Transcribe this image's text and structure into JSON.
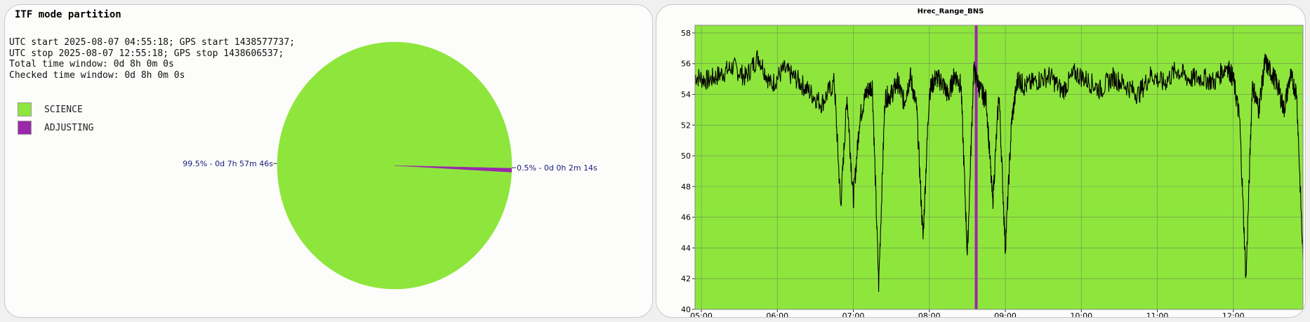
{
  "pie_panel": {
    "title": "ITF mode partition",
    "info_lines": [
      "UTC start 2025-08-07 04:55:18; GPS start 1438577737;",
      "UTC stop 2025-08-07 12:55:18; GPS stop 1438606537;",
      "Total time window: 0d 8h 0m 0s",
      "Checked time window: 0d 8h 0m 0s"
    ],
    "legend": [
      {
        "label": "SCIENCE",
        "color": "#8ee63d"
      },
      {
        "label": "ADJUSTING",
        "color": "#9a28aa"
      }
    ]
  },
  "chart_data": [
    {
      "type": "pie",
      "title": "ITF mode partition",
      "slices": [
        {
          "name": "SCIENCE",
          "percent": 99.5,
          "value_label": "99.5% - 0d 7h 57m 46s",
          "color": "#8ee63d"
        },
        {
          "name": "ADJUSTING",
          "percent": 0.5,
          "value_label": "0.5% - 0d 0h 2m 14s",
          "color": "#9a28aa"
        }
      ]
    },
    {
      "type": "line",
      "title": "Hrec_Range_BNS",
      "xlabel": "",
      "ylabel": "",
      "x_range": [
        "04:55",
        "12:55"
      ],
      "x_ticks": [
        "05:00",
        "06:00",
        "07:00",
        "08:00",
        "09:00",
        "10:00",
        "11:00",
        "12:00"
      ],
      "ylim": [
        40,
        58.5
      ],
      "y_ticks": [
        40,
        42,
        44,
        46,
        48,
        50,
        52,
        54,
        56,
        58
      ],
      "grid": true,
      "background_color": "#8ee63d",
      "line_color": "#000000",
      "adjusting_band": {
        "time": "08:37",
        "color": "#9a28aa"
      },
      "series": [
        {
          "x": [
            "04:55",
            "05:05",
            "05:15",
            "05:25",
            "05:35",
            "05:45",
            "05:55",
            "06:05",
            "06:15",
            "06:25",
            "06:35",
            "06:45",
            "06:50",
            "06:55",
            "07:00",
            "07:05",
            "07:10",
            "07:15",
            "07:20",
            "07:25",
            "07:30",
            "07:35",
            "07:40",
            "07:45",
            "07:50",
            "07:55",
            "08:00",
            "08:05",
            "08:10",
            "08:15",
            "08:20",
            "08:25",
            "08:30",
            "08:35",
            "08:40",
            "08:45",
            "08:50",
            "08:55",
            "09:00",
            "09:05",
            "09:10",
            "09:15",
            "09:25",
            "09:35",
            "09:45",
            "09:55",
            "10:05",
            "10:15",
            "10:25",
            "10:35",
            "10:45",
            "10:55",
            "11:05",
            "11:15",
            "11:25",
            "11:35",
            "11:45",
            "11:55",
            "12:00",
            "12:05",
            "12:10",
            "12:15",
            "12:20",
            "12:25",
            "12:30",
            "12:35",
            "12:40",
            "12:45",
            "12:50",
            "12:55"
          ],
          "y": [
            55.2,
            54.9,
            55.3,
            55.8,
            55.1,
            56.5,
            54.6,
            55.6,
            55.0,
            54.2,
            53.4,
            54.8,
            46.7,
            53.9,
            47.1,
            52.4,
            54.1,
            54.6,
            41.6,
            53.8,
            54.0,
            54.8,
            53.5,
            55.2,
            53.1,
            44.6,
            54.2,
            55.1,
            54.8,
            53.9,
            55.3,
            54.6,
            43.5,
            55.6,
            54.3,
            53.6,
            46.9,
            54.1,
            43.9,
            52.3,
            55.1,
            54.5,
            54.9,
            55.2,
            54.2,
            55.4,
            54.9,
            54.3,
            55.1,
            54.6,
            54.0,
            55.3,
            54.7,
            55.6,
            55.0,
            55.1,
            54.8,
            55.9,
            55.0,
            52.4,
            41.9,
            54.7,
            53.0,
            56.1,
            55.4,
            54.6,
            53.0,
            55.2,
            54.1,
            43.2
          ]
        }
      ]
    }
  ]
}
